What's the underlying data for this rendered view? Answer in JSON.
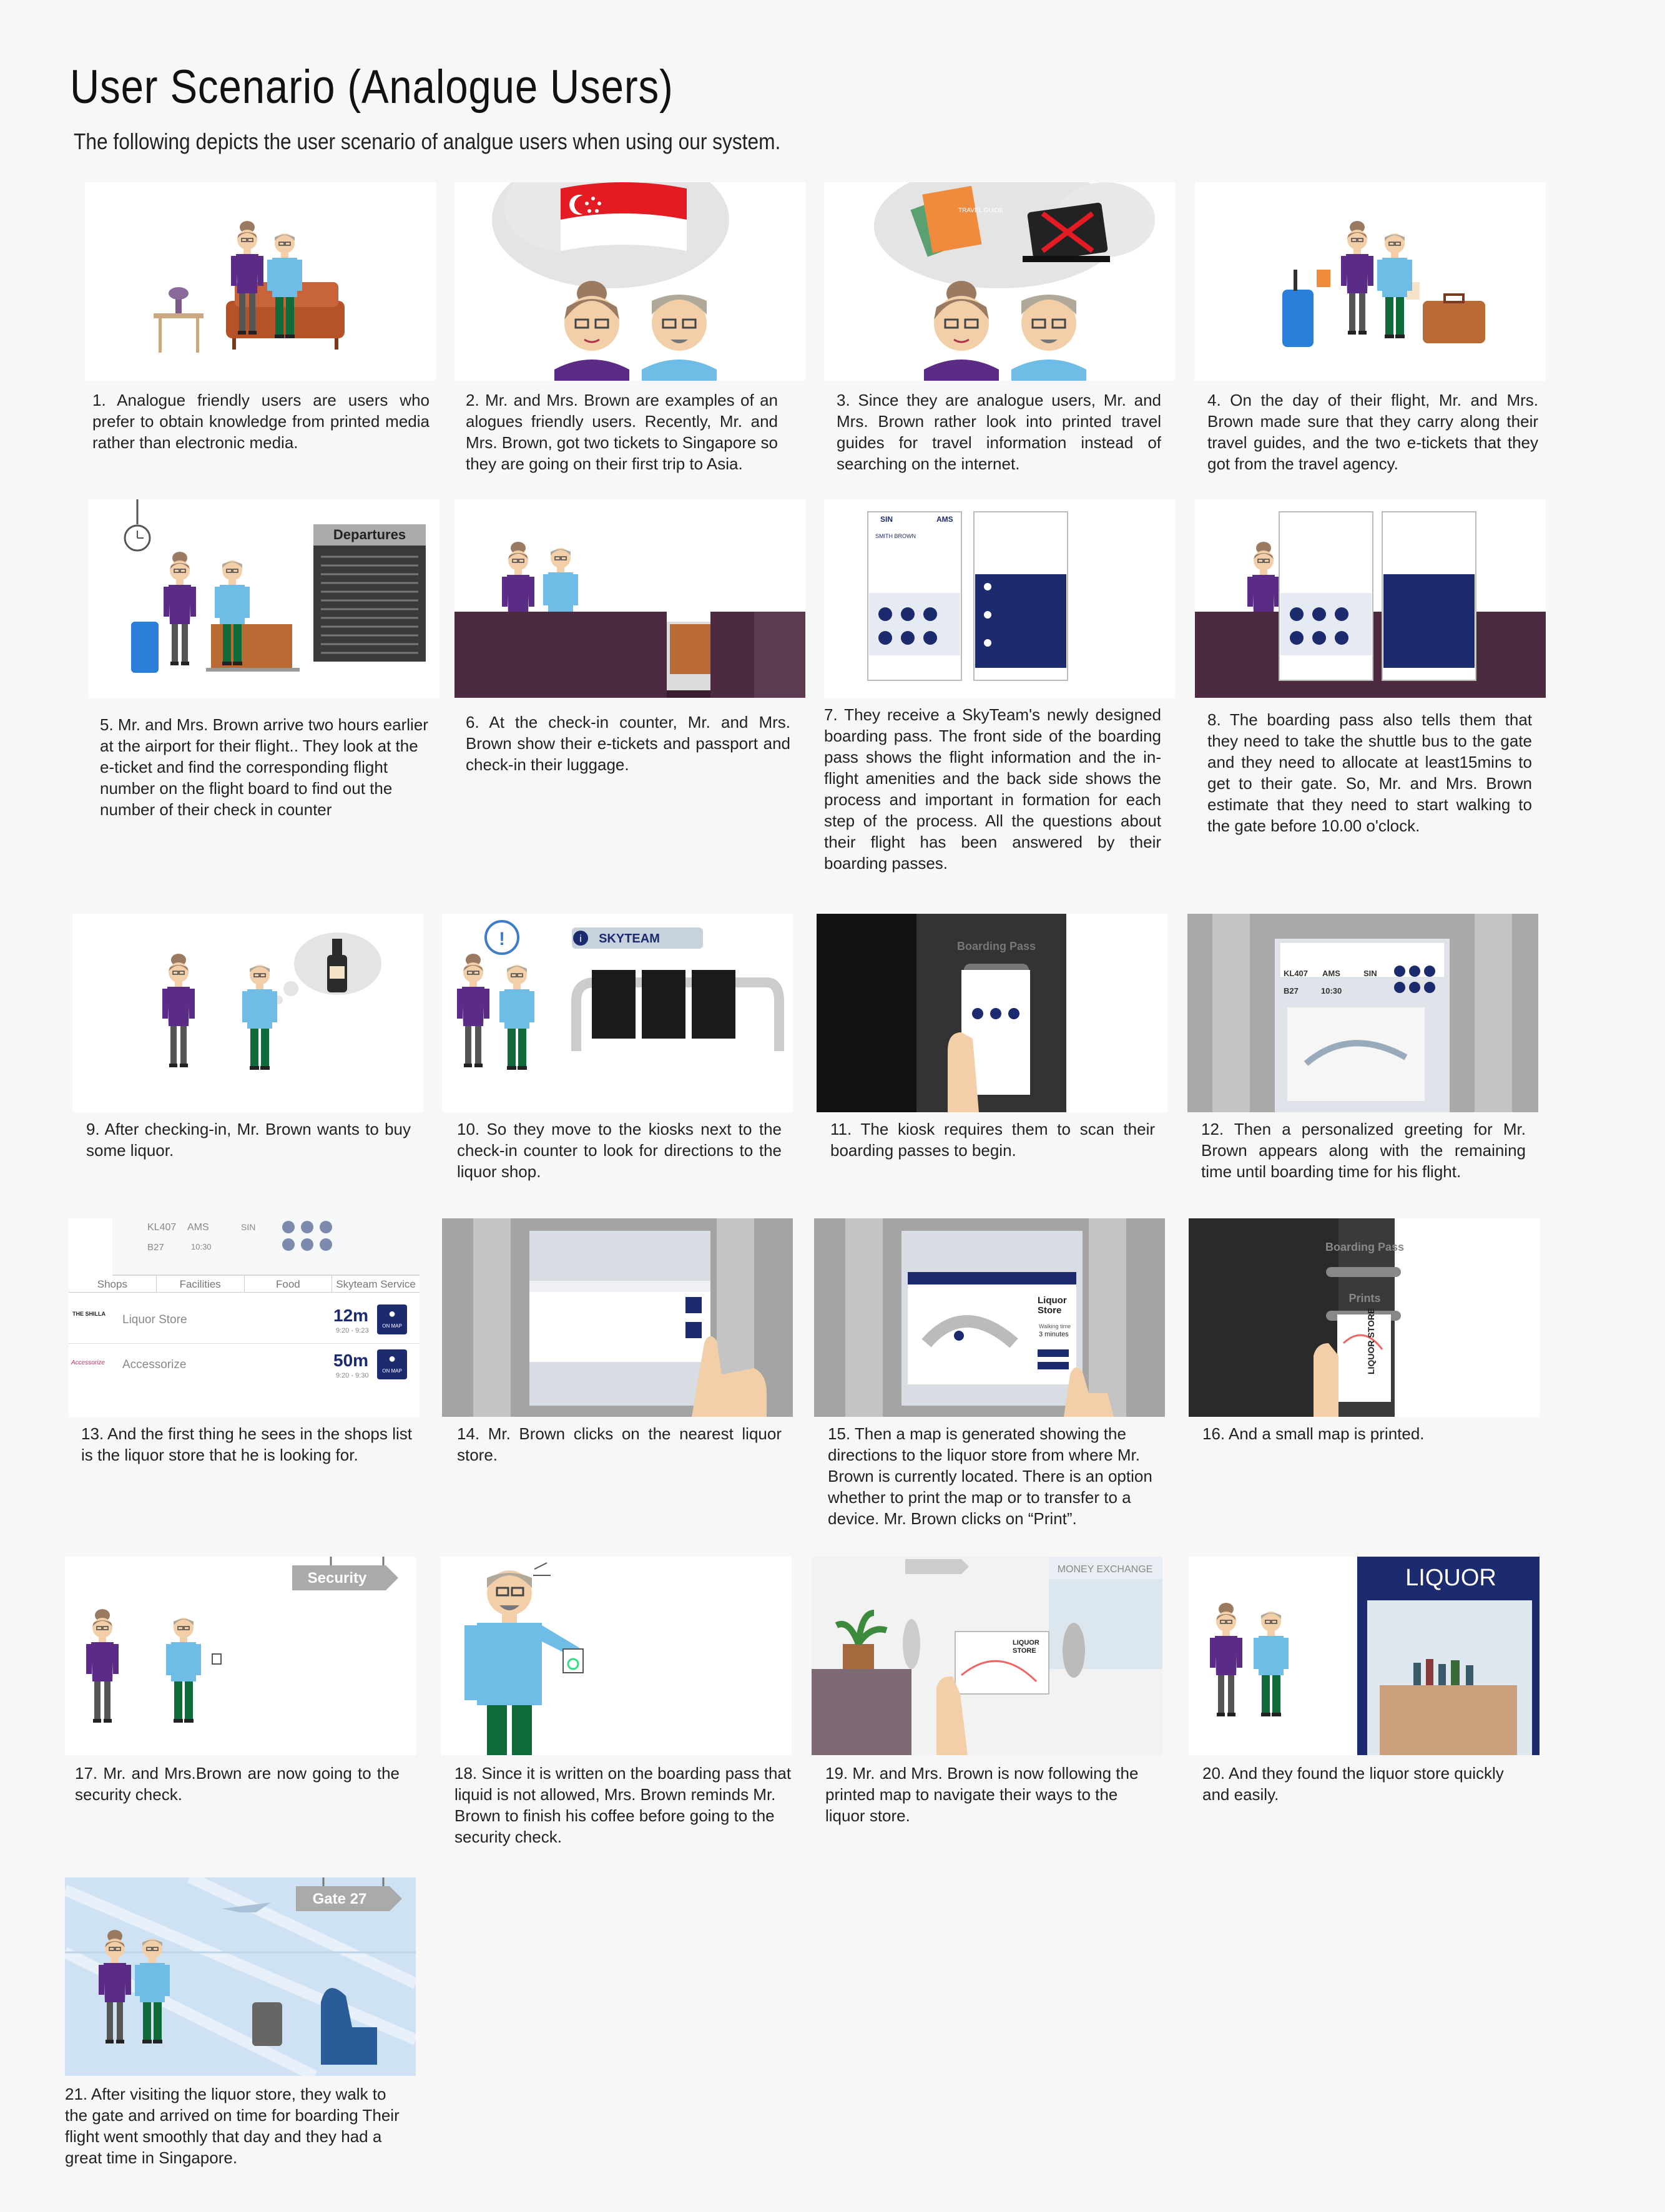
{
  "page": {
    "title": "User Scenario (Analogue Users)",
    "subtitle": "The following depicts the user scenario of analgue users when using our system."
  },
  "colors": {
    "purple": "#5b2c86",
    "skin": "#f2cfa8",
    "lightblue": "#6fbde6",
    "green": "#0f6b3a",
    "brown_sofa": "#b5522a",
    "suitcase_blue": "#2a7fd8",
    "suitcase_brown": "#b96a35",
    "counter": "#4c2a3f",
    "panel_dark": "#2a2a2a"
  },
  "scenes": [
    {
      "n": 1,
      "caption": "1. Analogue friendly users are users who prefer to obtain knowledge from printed media rather than electronic media."
    },
    {
      "n": 2,
      "caption": "2. Mr. and Mrs. Brown are examples of an alogues friendly users. Recently, Mr. and Mrs. Brown, got two tickets to Singapore so they are going on their first trip to Asia."
    },
    {
      "n": 3,
      "caption": "3. Since they are analogue users, Mr. and Mrs. Brown rather look into printed travel guides for travel information instead of searching on the internet.",
      "guide_label": "TRAVEL GUIDE"
    },
    {
      "n": 4,
      "caption": "4. On the day of their flight, Mr. and Mrs. Brown made sure that they carry along their travel guides, and the two e-tickets that they got from the travel agency."
    },
    {
      "n": 5,
      "caption": "5. Mr. and Mrs. Brown arrive two hours earlier at the airport for their flight.. They look at the e-ticket and find the corresponding flight number on the flight board to find out the number of their check in counter",
      "board_label": "Departures"
    },
    {
      "n": 6,
      "caption": "6. At the check-in counter, Mr. and Mrs. Brown show their e-tickets and passport and check-in their luggage."
    },
    {
      "n": 7,
      "caption": "7. They receive a SkyTeam's newly designed boarding pass. The front side of the boarding pass shows the flight information and the in-flight amenities and the back side shows the process and important in formation for each step of the process. All the questions about their flight has been answered by their boarding passes.",
      "pass_from": "SIN",
      "pass_to": "AMS",
      "pass_name": "SMITH BROWN"
    },
    {
      "n": 8,
      "caption": "8. The boarding pass also tells them that they need to take the shuttle bus to the gate and they need to allocate at least15mins to get to their gate. So, Mr. and Mrs. Brown estimate that they need to start walking to the gate before 10.00 o'clock."
    },
    {
      "n": 9,
      "caption": "9. After checking-in, Mr. Brown wants to buy some liquor."
    },
    {
      "n": 10,
      "caption": "10. So they move to the kiosks next to the check-in counter to look for directions to the liquor shop.",
      "kiosk_brand": "SKYTEAM"
    },
    {
      "n": 11,
      "caption": "11. The kiosk requires them to scan their boarding passes to begin.",
      "screen_label": "Boarding Pass"
    },
    {
      "n": 12,
      "caption": "12. Then a personalized greeting for Mr. Brown appears along with the remaining time until boarding time for his flight.",
      "flight": "KL407",
      "from": "AMS",
      "to": "SIN",
      "gate": "B27",
      "time": "10:30"
    },
    {
      "n": 13,
      "caption": "13. And the first thing he sees in the shops list is the liquor store that he is looking for.",
      "tabs": [
        "Shops",
        "Facilities",
        "Food",
        "Skyteam Service"
      ],
      "shops": [
        {
          "logo": "THE SHILLA",
          "name": "Liquor Store",
          "dist": "12m",
          "hours": "9:20 - 9:23",
          "action": "ON MAP"
        },
        {
          "logo": "Accessorize",
          "name": "Accessorize",
          "dist": "50m",
          "hours": "9:20 - 9:30",
          "action": "ON MAP"
        }
      ],
      "flight": "KL407",
      "from": "AMS",
      "to": "SIN",
      "gate": "B27",
      "time": "10:30"
    },
    {
      "n": 14,
      "caption": "14. Mr. Brown clicks on the nearest liquor store."
    },
    {
      "n": 15,
      "caption": "15. Then a map is generated showing the directions to the liquor store from where Mr. Brown is currently located. There is an option whether to print the map or to transfer to a device. Mr. Brown clicks on “Print”.",
      "dest_name": "Liquor Store",
      "walk_label": "Walking time",
      "walk_time": "3 minutes"
    },
    {
      "n": 16,
      "caption": "16. And a small map is printed.",
      "screen_label": "Boarding Pass",
      "print_label": "Prints",
      "store_label": "LIQUOR STORE"
    },
    {
      "n": 17,
      "caption": "17. Mr. and Mrs.Brown are now going to the security check.",
      "sign": "Security"
    },
    {
      "n": 18,
      "caption": "18. Since it is written on the boarding pass that liquid is not allowed, Mrs. Brown reminds Mr. Brown to finish his coffee before going to the security check."
    },
    {
      "n": 19,
      "caption": "19. Mr. and Mrs. Brown is now following the printed map to navigate their ways to the liquor store.",
      "sign": "MONEY EXCHANGE",
      "store_label": "LIQUOR STORE"
    },
    {
      "n": 20,
      "caption": "20. And they found the liquor store quickly and easily.",
      "sign": "LIQUOR"
    },
    {
      "n": 21,
      "caption": "21. After visiting the liquor store, they walk to the gate and arrived on time for boarding Their flight went smoothly that day and they had a great time in Singapore.",
      "sign": "Gate 27"
    }
  ]
}
